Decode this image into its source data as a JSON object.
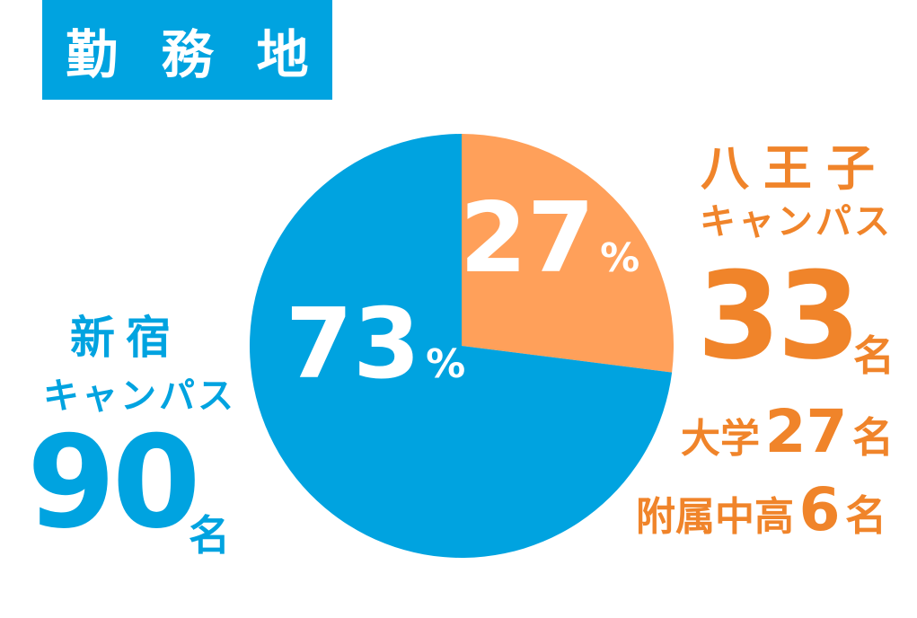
{
  "header": {
    "title": "勤 務 地",
    "color": "#00a3e0"
  },
  "left": {
    "name": "新宿",
    "sub": "キャンパス",
    "count": "90",
    "unit": "名",
    "color": "#00a3e0"
  },
  "right": {
    "name": "八王子",
    "sub": "キャンパス",
    "count": "33",
    "unit": "名",
    "color": "#f0842a",
    "details": [
      {
        "label": "大学",
        "value": "27",
        "unit": "名"
      },
      {
        "label": "附属中高",
        "value": "6",
        "unit": "名"
      }
    ]
  },
  "chart_data": {
    "type": "pie",
    "title": "勤 務 地",
    "slices": [
      {
        "value": 27,
        "display": "27",
        "suffix": "%",
        "color": "#ffa05a"
      },
      {
        "value": 73,
        "display": "73",
        "suffix": "%",
        "color": "#00a3e0"
      }
    ]
  }
}
